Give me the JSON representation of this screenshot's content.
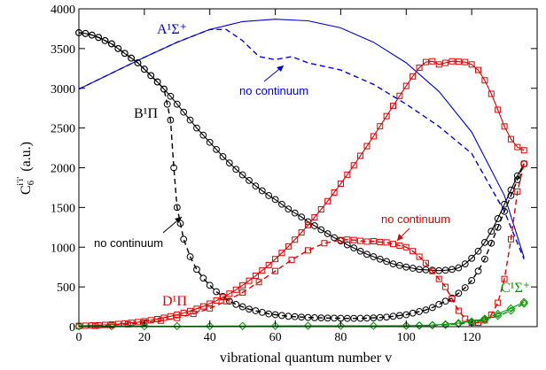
{
  "chart_data": {
    "type": "line",
    "xlabel": "vibrational quantum number v",
    "xlim": [
      0,
      140
    ],
    "ylim": [
      0,
      4000
    ],
    "x_ticks": [
      0,
      20,
      40,
      60,
      80,
      100,
      120
    ],
    "y_ticks": [
      0,
      500,
      1000,
      1500,
      2000,
      2500,
      3000,
      3500,
      4000
    ],
    "grid": false,
    "colors": {
      "A": "#0000dd",
      "B": "#000000",
      "D": "#e00000",
      "C": "#009900"
    },
    "series": [
      {
        "name": "A1Σ+",
        "color": "#0000dd",
        "style": "solid",
        "marker": "none",
        "x": [
          0,
          10,
          20,
          30,
          40,
          50,
          60,
          70,
          80,
          90,
          100,
          110,
          120,
          130,
          136
        ],
        "y": [
          2990,
          3190,
          3390,
          3580,
          3740,
          3840,
          3870,
          3850,
          3760,
          3580,
          3320,
          2960,
          2450,
          1650,
          870
        ]
      },
      {
        "name": "A1Σ+ no continuum",
        "color": "#0000dd",
        "style": "dashed",
        "marker": "none",
        "x": [
          0,
          10,
          20,
          30,
          40,
          45,
          50,
          55,
          60,
          65,
          70,
          80,
          90,
          100,
          110,
          120,
          130,
          136
        ],
        "y": [
          2990,
          3190,
          3390,
          3580,
          3740,
          3740,
          3600,
          3400,
          3360,
          3400,
          3320,
          3230,
          3050,
          2800,
          2520,
          2180,
          1450,
          850
        ]
      },
      {
        "name": "B1Π",
        "color": "#000000",
        "style": "solid",
        "marker": "circle",
        "x": [
          0,
          2,
          4,
          6,
          8,
          10,
          12,
          14,
          16,
          18,
          20,
          22,
          24,
          26,
          28,
          30,
          32,
          34,
          36,
          38,
          40,
          42,
          44,
          46,
          48,
          50,
          52,
          54,
          56,
          58,
          60,
          62,
          64,
          66,
          68,
          70,
          72,
          74,
          76,
          78,
          80,
          82,
          84,
          86,
          88,
          90,
          92,
          94,
          96,
          98,
          100,
          102,
          104,
          106,
          108,
          110,
          112,
          114,
          116,
          118,
          120,
          122,
          124,
          126,
          128,
          130,
          132,
          134,
          136
        ],
        "y": [
          3700,
          3690,
          3670,
          3640,
          3600,
          3560,
          3500,
          3440,
          3380,
          3320,
          3240,
          3160,
          3080,
          2990,
          2900,
          2800,
          2700,
          2600,
          2500,
          2410,
          2320,
          2230,
          2140,
          2060,
          1980,
          1910,
          1840,
          1770,
          1710,
          1650,
          1600,
          1540,
          1480,
          1430,
          1380,
          1320,
          1270,
          1220,
          1170,
          1120,
          1080,
          1030,
          990,
          950,
          910,
          880,
          850,
          820,
          790,
          770,
          750,
          735,
          720,
          715,
          710,
          705,
          710,
          720,
          740,
          790,
          860,
          950,
          1060,
          1200,
          1360,
          1540,
          1720,
          1900,
          2050
        ]
      },
      {
        "name": "B1Π no continuum",
        "color": "#000000",
        "style": "dashed",
        "marker": "circle",
        "x": [
          0,
          2,
          4,
          6,
          8,
          10,
          12,
          14,
          16,
          18,
          20,
          22,
          24,
          26,
          27,
          28,
          29,
          30,
          31,
          32,
          34,
          36,
          38,
          40,
          42,
          44,
          46,
          48,
          50,
          52,
          54,
          56,
          58,
          60,
          62,
          64,
          66,
          68,
          70,
          72,
          74,
          76,
          78,
          80,
          82,
          84,
          86,
          88,
          90,
          92,
          94,
          96,
          98,
          100,
          102,
          104,
          106,
          108,
          110,
          112,
          114,
          116,
          118,
          120,
          122,
          124,
          126,
          128,
          130,
          132,
          134,
          136
        ],
        "y": [
          3700,
          3690,
          3670,
          3640,
          3600,
          3560,
          3500,
          3440,
          3380,
          3320,
          3240,
          3160,
          3080,
          2990,
          2800,
          2600,
          2000,
          1500,
          1300,
          1100,
          880,
          720,
          610,
          520,
          440,
          380,
          320,
          280,
          250,
          220,
          200,
          180,
          160,
          150,
          140,
          130,
          125,
          120,
          115,
          112,
          110,
          108,
          107,
          105,
          104,
          104,
          105,
          107,
          110,
          115,
          120,
          130,
          140,
          150,
          170,
          190,
          210,
          240,
          280,
          320,
          360,
          420,
          490,
          580,
          700,
          850,
          1050,
          1250,
          1450,
          1650,
          1850,
          2050
        ]
      },
      {
        "name": "D1Π",
        "color": "#e00000",
        "style": "solid",
        "marker": "square",
        "x": [
          0,
          2,
          4,
          6,
          8,
          10,
          12,
          14,
          16,
          18,
          20,
          22,
          24,
          26,
          28,
          30,
          32,
          34,
          36,
          38,
          40,
          42,
          44,
          46,
          48,
          50,
          52,
          54,
          56,
          58,
          60,
          62,
          64,
          66,
          68,
          70,
          72,
          74,
          76,
          78,
          80,
          82,
          84,
          86,
          88,
          90,
          92,
          94,
          96,
          98,
          100,
          102,
          104,
          106,
          108,
          110,
          112,
          114,
          116,
          118,
          120,
          122,
          124,
          126,
          128,
          130,
          132,
          134,
          136
        ],
        "y": [
          10,
          12,
          15,
          18,
          22,
          27,
          33,
          40,
          48,
          57,
          68,
          80,
          95,
          112,
          130,
          150,
          172,
          197,
          225,
          255,
          290,
          328,
          370,
          415,
          465,
          520,
          578,
          640,
          706,
          776,
          850,
          928,
          1010,
          1095,
          1185,
          1278,
          1375,
          1476,
          1580,
          1688,
          1799,
          1913,
          2030,
          2150,
          2272,
          2396,
          2522,
          2650,
          2778,
          2905,
          3030,
          3150,
          3260,
          3330,
          3340,
          3300,
          3320,
          3340,
          3335,
          3330,
          3300,
          3230,
          3100,
          2930,
          2730,
          2520,
          2360,
          2260,
          2220
        ]
      },
      {
        "name": "D1Π no continuum",
        "color": "#e00000",
        "style": "dashed",
        "marker": "square",
        "x": [
          0,
          5,
          10,
          15,
          20,
          25,
          30,
          35,
          40,
          45,
          50,
          55,
          60,
          65,
          70,
          75,
          80,
          82,
          84,
          86,
          88,
          90,
          92,
          94,
          96,
          98,
          100,
          102,
          104,
          106,
          108,
          110,
          112,
          114,
          116,
          118,
          120,
          122,
          124,
          126,
          128,
          130,
          132,
          134,
          136
        ],
        "y": [
          5,
          10,
          18,
          30,
          50,
          75,
          110,
          160,
          230,
          320,
          430,
          560,
          700,
          840,
          960,
          1050,
          1090,
          1095,
          1090,
          1080,
          1070,
          1075,
          1065,
          1060,
          1040,
          1020,
          1000,
          950,
          880,
          800,
          700,
          600,
          500,
          350,
          200,
          100,
          50,
          50,
          80,
          150,
          300,
          600,
          1100,
          1700,
          2050
        ]
      },
      {
        "name": "C1Σ+",
        "color": "#009900",
        "style": "solid",
        "marker": "diamond",
        "x": [
          0,
          10,
          20,
          30,
          40,
          50,
          60,
          70,
          80,
          90,
          100,
          104,
          108,
          112,
          116,
          120,
          124,
          128,
          132,
          136
        ],
        "y": [
          5,
          5,
          5,
          6,
          7,
          8,
          9,
          10,
          10,
          10,
          12,
          15,
          20,
          30,
          45,
          65,
          100,
          160,
          230,
          310
        ]
      },
      {
        "name": "C1Σ+ no continuum",
        "color": "#009900",
        "style": "dashed",
        "marker": "diamond",
        "x": [
          100,
          104,
          108,
          112,
          116,
          120,
          124,
          128,
          132,
          136
        ],
        "y": [
          10,
          12,
          16,
          22,
          35,
          52,
          85,
          135,
          200,
          290
        ]
      }
    ],
    "annotations": {
      "A": "A¹Σ⁺",
      "B": "B¹Π",
      "D": "D¹Π",
      "C": "C¹Σ⁺",
      "no_continuum_A": "no continuum",
      "no_continuum_B": "no continuum",
      "no_continuum_D": "no continuum",
      "ylabel_main": "C",
      "ylabel_sub": "6",
      "ylabel_sup": "i'i'",
      "ylabel_unit": "(a.u.)"
    }
  }
}
